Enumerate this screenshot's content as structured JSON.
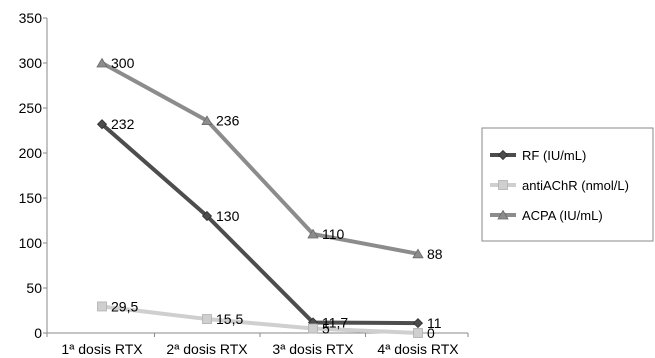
{
  "chart_data": {
    "type": "line",
    "categories": [
      "1ª dosis RTX",
      "2ª dosis RTX",
      "3ª dosis RTX",
      "4ª dosis RTX"
    ],
    "ylim": [
      0,
      350
    ],
    "yticks": [
      0,
      50,
      100,
      150,
      200,
      250,
      300,
      350
    ],
    "grid": false,
    "legend_position": "right",
    "series": [
      {
        "name": "RF (IU/mL)",
        "values": [
          232,
          130,
          11.7,
          11
        ],
        "labels": [
          "232",
          "130",
          "11,7",
          "11"
        ],
        "color": "#4d4d4d",
        "marker": "diamond"
      },
      {
        "name": "antiAChR (nmol/L)",
        "values": [
          29.5,
          15.5,
          5,
          0
        ],
        "labels": [
          "29,5",
          "15,5",
          "5",
          "0"
        ],
        "color": "#cfcfcf",
        "marker": "square"
      },
      {
        "name": "ACPA (IU/mL)",
        "values": [
          300,
          236,
          110,
          88
        ],
        "labels": [
          "300",
          "236",
          "110",
          "88"
        ],
        "color": "#8c8c8c",
        "marker": "triangle"
      }
    ]
  }
}
